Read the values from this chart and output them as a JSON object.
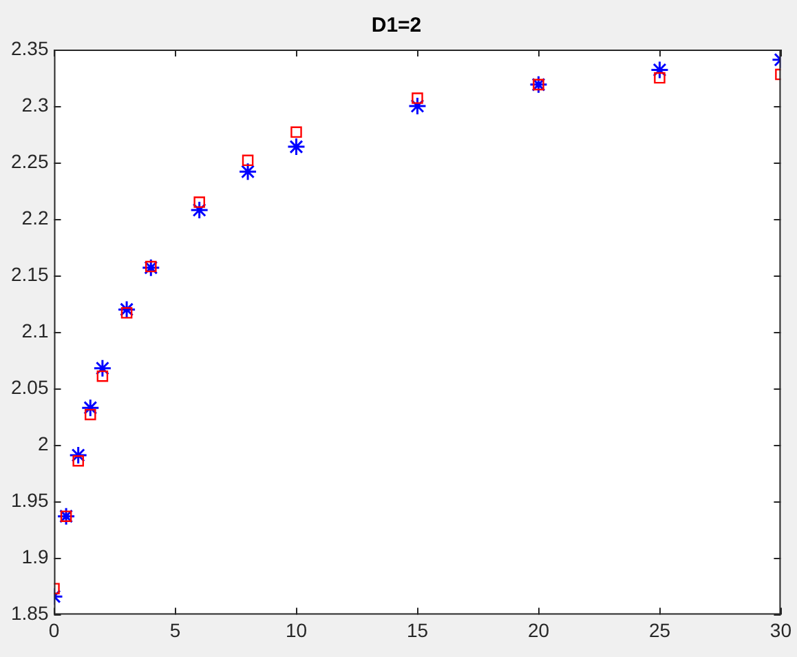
{
  "chart_data": {
    "type": "scatter",
    "title": "D1=2",
    "x": [
      0,
      0.5,
      1,
      1.5,
      2,
      3,
      4,
      6,
      8,
      10,
      15,
      20,
      25,
      30
    ],
    "series": [
      {
        "color": "#ff0000",
        "marker": "square",
        "values": [
          1.873,
          1.937,
          1.986,
          2.027,
          2.061,
          2.117,
          2.158,
          2.215,
          2.252,
          2.277,
          2.307,
          2.319,
          2.325,
          2.328
        ]
      },
      {
        "color": "#0000ff",
        "marker": "cross",
        "values": [
          1.866,
          1.937,
          1.991,
          2.033,
          2.068,
          2.12,
          2.157,
          2.208,
          2.242,
          2.264,
          2.3,
          2.319,
          2.332,
          2.341
        ]
      }
    ],
    "xlim": [
      0,
      30
    ],
    "xticks": [
      0,
      5,
      10,
      15,
      20,
      25,
      30
    ],
    "ylim": [
      1.85,
      2.35
    ],
    "yticks": [
      1.85,
      1.9,
      1.95,
      2,
      2.05,
      2.1,
      2.15,
      2.2,
      2.25,
      2.3,
      2.35
    ],
    "grid": false,
    "legend": false
  }
}
